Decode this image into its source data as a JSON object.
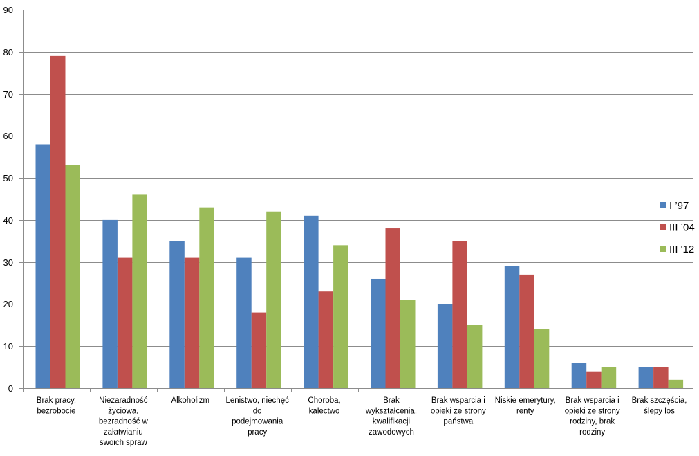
{
  "chart_data": {
    "type": "bar",
    "title": "",
    "xlabel": "",
    "ylabel": "",
    "ylim": [
      0,
      90
    ],
    "ytick_step": 10,
    "grid": true,
    "legend_position": "right",
    "categories": [
      [
        "Brak pracy,",
        "bezrobocie"
      ],
      [
        "Niezaradność",
        "życiowa,",
        "bezradność w",
        "załatwianiu",
        "swoich spraw"
      ],
      [
        "Alkoholizm"
      ],
      [
        "Lenistwo, niechęć",
        "do",
        "podejmowania",
        "pracy"
      ],
      [
        "Choroba,",
        "kalectwo"
      ],
      [
        "Brak",
        "wykształcenia,",
        "kwalifikacji",
        "zawodowych"
      ],
      [
        "Brak wsparcia i",
        "opieki ze strony",
        "państwa"
      ],
      [
        "Niskie emerytury,",
        "renty"
      ],
      [
        "Brak wsparcia i",
        "opieki ze strony",
        "rodziny, brak",
        "rodziny"
      ],
      [
        "Brak szczęścia,",
        "ślepy los"
      ]
    ],
    "series": [
      {
        "name": "I ’97",
        "color": "#4F81BD",
        "values": [
          58,
          40,
          35,
          31,
          41,
          26,
          20,
          29,
          6,
          5
        ]
      },
      {
        "name": "III ’04",
        "color": "#C0504D",
        "values": [
          79,
          31,
          31,
          18,
          23,
          38,
          35,
          27,
          4,
          5
        ]
      },
      {
        "name": "III '12",
        "color": "#9BBB59",
        "values": [
          53,
          46,
          43,
          42,
          34,
          21,
          15,
          14,
          5,
          2
        ]
      }
    ]
  }
}
